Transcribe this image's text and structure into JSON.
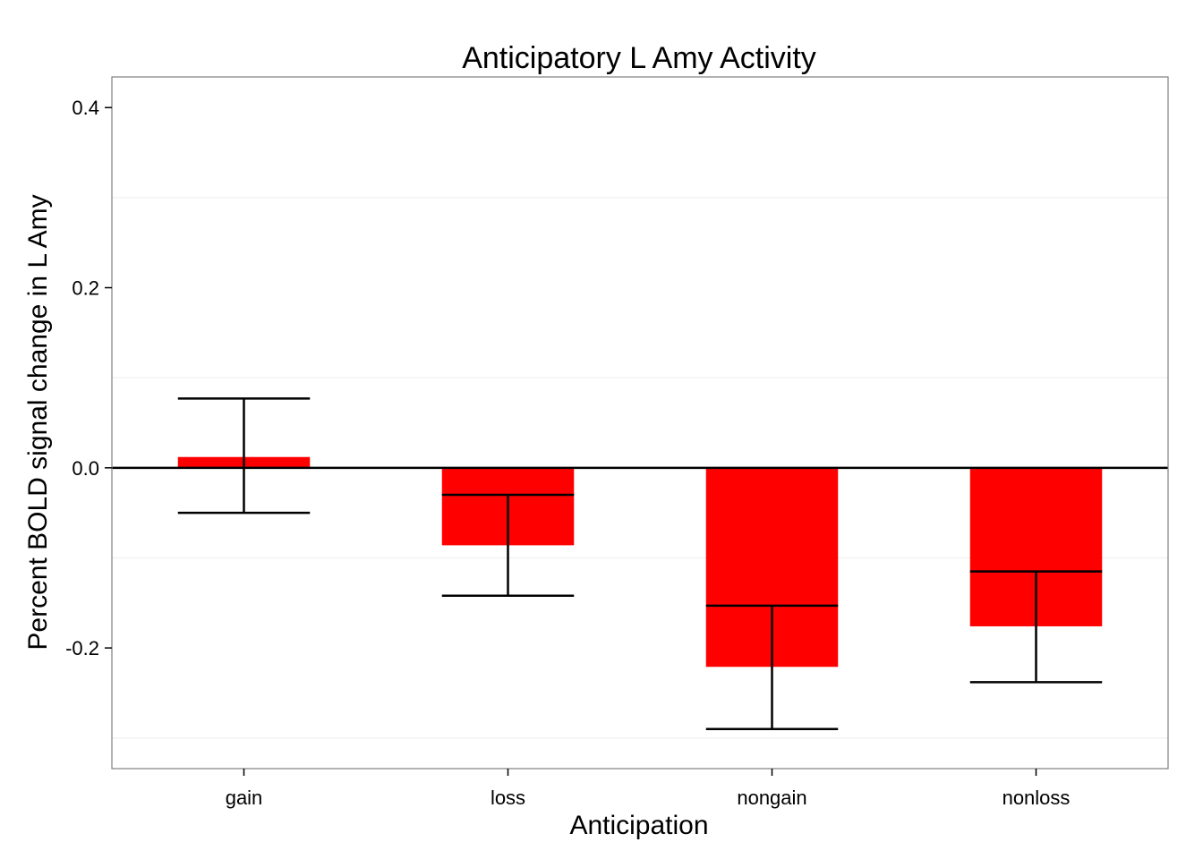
{
  "chart_data": {
    "type": "bar",
    "title": "Anticipatory L Amy Activity",
    "xlabel": "Anticipation",
    "ylabel": "Percent BOLD signal change in L Amy",
    "categories": [
      "gain",
      "loss",
      "nongain",
      "nonloss"
    ],
    "values": [
      0.012,
      -0.086,
      -0.221,
      -0.176
    ],
    "error_bars": [
      {
        "low": -0.05,
        "high": 0.077
      },
      {
        "low": -0.142,
        "high": -0.03
      },
      {
        "low": -0.29,
        "high": -0.153
      },
      {
        "low": -0.238,
        "high": -0.115
      }
    ],
    "yticks": [
      -0.2,
      0.0,
      0.2,
      0.4
    ],
    "ytick_labels": [
      "-0.2",
      "0.0",
      "0.2",
      "0.4"
    ],
    "ylim": [
      -0.334,
      0.434
    ],
    "reference_line": 0.0,
    "grid": true,
    "legend": "none",
    "colors": {
      "bar": "#ff0000",
      "errorbar": "#000000",
      "grid": "#f2f2f2",
      "panel_border": "#7f7f7f"
    }
  }
}
